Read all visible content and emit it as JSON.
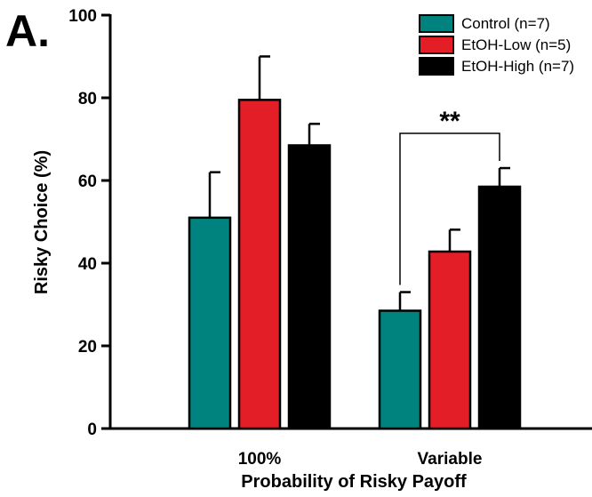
{
  "panel_label": "A.",
  "chart_data": {
    "type": "bar",
    "title": "",
    "xlabel": "Probability of Risky Payoff",
    "ylabel": "Risky Choice (%)",
    "ylim": [
      0,
      100
    ],
    "yticks": [
      "0",
      "20",
      "40",
      "60",
      "80",
      "100"
    ],
    "categories": [
      "100%",
      "Variable"
    ],
    "series": [
      {
        "name": "Control (n=7)",
        "color": "#00827f",
        "values": [
          51,
          28.5
        ],
        "errors": [
          11,
          4.5
        ]
      },
      {
        "name": "EtOH-Low (n=5)",
        "color": "#e31e26",
        "values": [
          79.5,
          42.8
        ],
        "errors": [
          10.5,
          5.3
        ]
      },
      {
        "name": "EtOH-High (n=7)",
        "color": "#000000",
        "values": [
          68.5,
          58.5
        ],
        "errors": [
          5.2,
          4.5
        ]
      }
    ],
    "legend_position": "top-right",
    "annotations": [
      {
        "label": "**",
        "category": "Variable",
        "between_series": [
          "Control (n=7)",
          "EtOH-High (n=7)"
        ]
      }
    ],
    "grid": false
  }
}
